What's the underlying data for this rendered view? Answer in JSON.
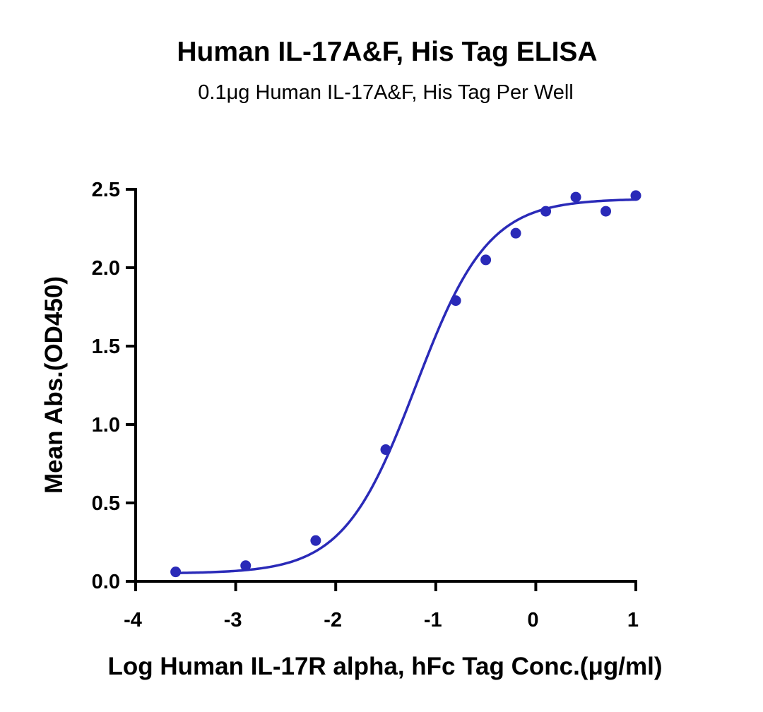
{
  "chart_data": {
    "type": "scatter",
    "title": "Human IL-17A&F, His Tag ELISA",
    "subtitle": "0.1μg Human IL-17A&F, His Tag Per Well",
    "xlabel": "Log Human IL-17R alpha, hFc Tag Conc.(μg/ml)",
    "ylabel": "Mean Abs.(OD450)",
    "xlim": [
      -4,
      1
    ],
    "ylim": [
      0.0,
      2.5
    ],
    "x_ticks": [
      "-4",
      "-3",
      "-2",
      "-1",
      "0",
      "1"
    ],
    "y_ticks": [
      "0.0",
      "0.5",
      "1.0",
      "1.5",
      "2.0",
      "2.5"
    ],
    "x_tick_values": [
      -4,
      -3,
      -2,
      -1,
      0,
      1
    ],
    "y_tick_values": [
      0.0,
      0.5,
      1.0,
      1.5,
      2.0,
      2.5
    ],
    "grid": false,
    "legend": "none",
    "colors": {
      "series": "#2a2ab8",
      "axis": "#000000"
    },
    "series": [
      {
        "x": [
          -3.6,
          -2.9,
          -2.2,
          -1.5,
          -0.8,
          -0.5,
          -0.2,
          0.1,
          0.4,
          0.7,
          1.0
        ],
        "y": [
          0.06,
          0.1,
          0.26,
          0.84,
          1.79,
          2.05,
          2.22,
          2.36,
          2.45,
          2.36,
          2.46
        ]
      }
    ],
    "fit_curve": {
      "model": "four-parameter logistic",
      "bottom": 0.05,
      "top": 2.44,
      "log_ec50": -1.2,
      "hill_slope": 1.2
    }
  }
}
